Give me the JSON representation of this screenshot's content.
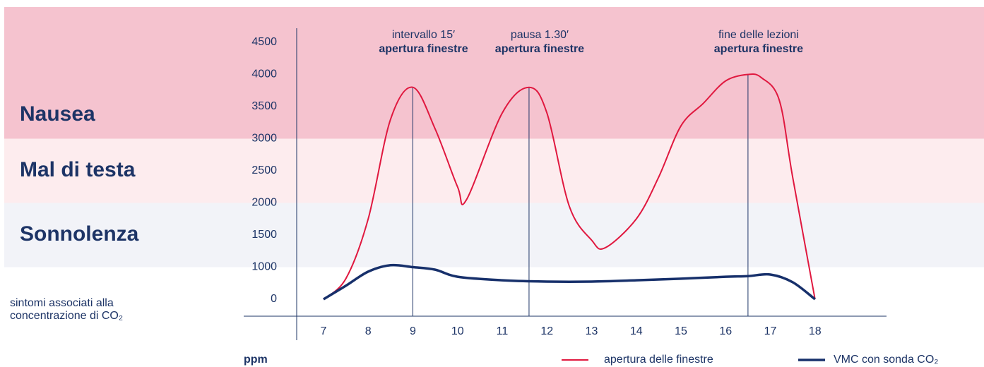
{
  "chart_data": {
    "type": "line",
    "bands": [
      {
        "label": "Nausea",
        "from": 3000,
        "color": "#f5c3cf"
      },
      {
        "label": "Mal di testa",
        "from": 2000,
        "to": 3000,
        "color": "#fdecee"
      },
      {
        "label": "Sonnolenza",
        "from": 1000,
        "to": 2000,
        "color": "#f2f3f8"
      }
    ],
    "note": [
      "sintomi associati alla",
      "concentrazione di CO₂"
    ],
    "y_label": "ppm",
    "x": [
      7,
      7.5,
      8,
      8.5,
      9,
      9.5,
      10,
      10.2,
      11,
      11.6,
      12,
      12.5,
      13,
      13.3,
      14,
      14.5,
      15,
      15.5,
      16,
      16.5,
      16.8,
      17.2,
      17.5,
      18
    ],
    "series": [
      {
        "name": "apertura delle finestre",
        "color": "#e0183f",
        "values": [
          0,
          640,
          1750,
          3300,
          3800,
          3150,
          2250,
          2050,
          3400,
          3800,
          3400,
          1950,
          1420,
          1300,
          1750,
          2400,
          3200,
          3550,
          3900,
          4000,
          3950,
          3600,
          2400,
          0
        ]
      },
      {
        "name": "VMC con sonda CO₂",
        "color": "#17306b",
        "x": [
          7,
          7.5,
          8,
          8.5,
          9,
          9.5,
          10,
          11,
          12,
          13,
          14,
          15,
          16,
          16.5,
          17,
          17.5,
          18
        ],
        "values": [
          0,
          420,
          860,
          1030,
          1000,
          920,
          700,
          590,
          550,
          550,
          590,
          640,
          700,
          720,
          770,
          530,
          0
        ]
      }
    ],
    "annotations": [
      {
        "x": 9,
        "lines": [
          "intervallo 15′",
          "apertura finestre"
        ]
      },
      {
        "x": 11.6,
        "lines": [
          "pausa 1.30′",
          "apertura finestre"
        ]
      },
      {
        "x": 16.5,
        "lines": [
          "fine delle lezioni",
          "apertura finestre"
        ]
      }
    ],
    "xlim": [
      6.4,
      19.6
    ],
    "xticks": [
      7,
      8,
      9,
      10,
      11,
      12,
      13,
      14,
      15,
      16,
      17,
      18
    ],
    "yticks": [
      0,
      1000,
      1500,
      2000,
      2500,
      3000,
      3500,
      4000,
      4500
    ]
  }
}
